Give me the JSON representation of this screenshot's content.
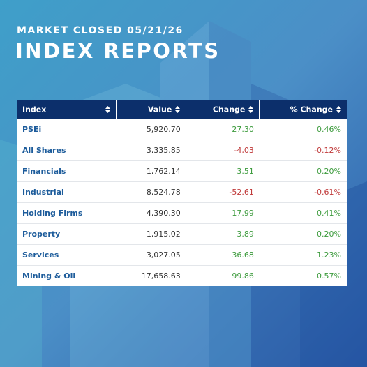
{
  "header": {
    "subtitle": "MARKET CLOSED 05/21/26",
    "title": "INDEX REPORTS"
  },
  "table": {
    "columns": [
      "Index",
      "Value",
      "Change",
      "% Change"
    ],
    "rows": [
      [
        "PSEi",
        "5,920.70",
        "27.30",
        "0.46%"
      ],
      [
        "All Shares",
        "3,335.85",
        "-4,03",
        "-0.12%"
      ],
      [
        "Financials",
        "1,762.14",
        "3.51",
        "0.20%"
      ],
      [
        "Industrial",
        "8,524.78",
        "-52.61",
        "-0.61%"
      ],
      [
        "Holding Firms",
        "4,390.30",
        "17.99",
        "0.41%"
      ],
      [
        "Property",
        "1,915.02",
        "3.89",
        "0.20%"
      ],
      [
        "Services",
        "3,027.05",
        "36.68",
        "1.23%"
      ],
      [
        "Mining & Oil",
        "17,658.63",
        "99.86",
        "0.57%"
      ]
    ]
  }
}
